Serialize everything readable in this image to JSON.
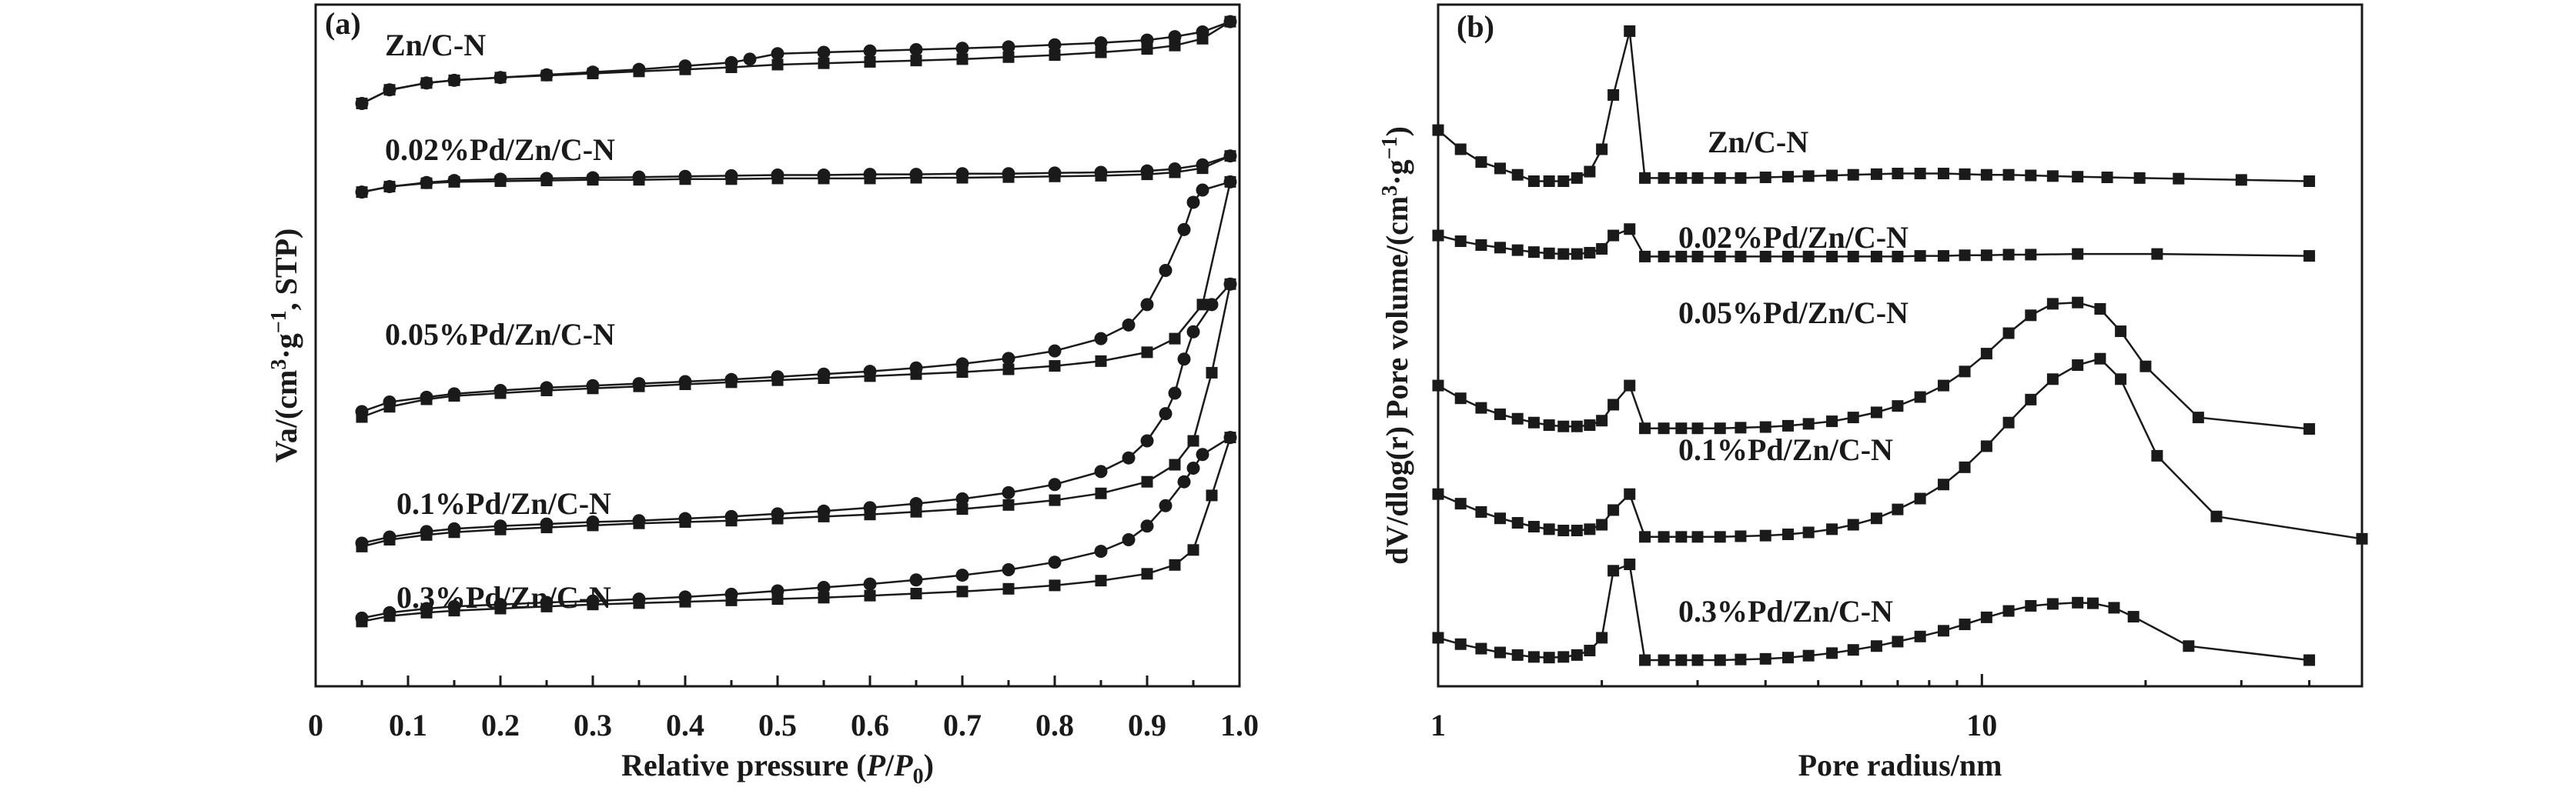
{
  "chart_data": [
    {
      "type": "line",
      "panel_label": "(a)",
      "xlabel": "Relative pressure (P/P0)",
      "xlabel_parts": {
        "prefix": "Relative pressure (",
        "p": "P",
        "slash": "/",
        "p0": "P",
        "sub": "0",
        "suffix": ")"
      },
      "ylabel": "Va/(cm³·g⁻¹, STP)",
      "ylabel_parts": {
        "a": "Va/(cm",
        "sup1": "3",
        "b": "·g",
        "sup2": "−1",
        "c": ", STP)"
      },
      "xlim": [
        0,
        1.0
      ],
      "xticks": [
        "0",
        "0.1",
        "0.2",
        "0.3",
        "0.4",
        "0.5",
        "0.6",
        "0.7",
        "0.8",
        "0.9",
        "1.0"
      ],
      "y_ticks_shown": false,
      "grid": false,
      "series": [
        {
          "name": "Zn/C-N",
          "adsorption": {
            "marker": "square",
            "x": [
              0.05,
              0.08,
              0.12,
              0.15,
              0.2,
              0.25,
              0.3,
              0.35,
              0.4,
              0.45,
              0.5,
              0.55,
              0.6,
              0.65,
              0.7,
              0.75,
              0.8,
              0.85,
              0.9,
              0.93,
              0.96,
              0.99
            ],
            "y": [
              0.855,
              0.875,
              0.885,
              0.889,
              0.893,
              0.896,
              0.899,
              0.902,
              0.905,
              0.908,
              0.912,
              0.914,
              0.916,
              0.918,
              0.92,
              0.923,
              0.926,
              0.93,
              0.935,
              0.94,
              0.95,
              0.975
            ]
          },
          "desorption": {
            "marker": "circle",
            "x": [
              0.05,
              0.08,
              0.12,
              0.15,
              0.2,
              0.25,
              0.3,
              0.35,
              0.4,
              0.45,
              0.47,
              0.5,
              0.55,
              0.6,
              0.65,
              0.7,
              0.75,
              0.8,
              0.85,
              0.9,
              0.93,
              0.96,
              0.99
            ],
            "y": [
              0.855,
              0.875,
              0.885,
              0.889,
              0.893,
              0.897,
              0.901,
              0.905,
              0.91,
              0.915,
              0.92,
              0.928,
              0.93,
              0.932,
              0.934,
              0.936,
              0.938,
              0.941,
              0.944,
              0.948,
              0.953,
              0.96,
              0.975
            ]
          }
        },
        {
          "name": "0.02%Pd/Zn/C-N",
          "adsorption": {
            "marker": "square",
            "x": [
              0.05,
              0.08,
              0.12,
              0.15,
              0.2,
              0.25,
              0.3,
              0.35,
              0.4,
              0.45,
              0.5,
              0.55,
              0.6,
              0.65,
              0.7,
              0.75,
              0.8,
              0.85,
              0.9,
              0.93,
              0.96,
              0.99
            ],
            "y": [
              0.725,
              0.733,
              0.738,
              0.74,
              0.741,
              0.742,
              0.743,
              0.743,
              0.744,
              0.744,
              0.745,
              0.745,
              0.745,
              0.746,
              0.746,
              0.747,
              0.748,
              0.749,
              0.751,
              0.754,
              0.76,
              0.778
            ]
          },
          "desorption": {
            "marker": "circle",
            "x": [
              0.05,
              0.08,
              0.12,
              0.15,
              0.2,
              0.25,
              0.3,
              0.35,
              0.4,
              0.45,
              0.5,
              0.55,
              0.6,
              0.65,
              0.7,
              0.75,
              0.8,
              0.85,
              0.9,
              0.93,
              0.96,
              0.99
            ],
            "y": [
              0.725,
              0.733,
              0.739,
              0.742,
              0.744,
              0.745,
              0.746,
              0.747,
              0.748,
              0.749,
              0.75,
              0.75,
              0.751,
              0.751,
              0.752,
              0.752,
              0.753,
              0.754,
              0.756,
              0.759,
              0.765,
              0.778
            ]
          }
        },
        {
          "name": "0.05%Pd/Zn/C-N",
          "adsorption": {
            "marker": "square",
            "x": [
              0.05,
              0.08,
              0.12,
              0.15,
              0.2,
              0.25,
              0.3,
              0.35,
              0.4,
              0.45,
              0.5,
              0.55,
              0.6,
              0.65,
              0.7,
              0.75,
              0.8,
              0.85,
              0.9,
              0.93,
              0.96,
              0.99
            ],
            "y": [
              0.395,
              0.41,
              0.421,
              0.426,
              0.43,
              0.434,
              0.437,
              0.44,
              0.443,
              0.446,
              0.449,
              0.452,
              0.455,
              0.458,
              0.461,
              0.465,
              0.47,
              0.477,
              0.49,
              0.51,
              0.56,
              0.74
            ]
          },
          "desorption": {
            "marker": "circle",
            "x": [
              0.05,
              0.08,
              0.12,
              0.15,
              0.2,
              0.25,
              0.3,
              0.35,
              0.4,
              0.45,
              0.5,
              0.55,
              0.6,
              0.65,
              0.7,
              0.75,
              0.8,
              0.85,
              0.88,
              0.9,
              0.92,
              0.94,
              0.95,
              0.96,
              0.99
            ],
            "y": [
              0.403,
              0.417,
              0.424,
              0.429,
              0.434,
              0.438,
              0.441,
              0.444,
              0.447,
              0.45,
              0.454,
              0.458,
              0.462,
              0.467,
              0.473,
              0.481,
              0.492,
              0.51,
              0.53,
              0.56,
              0.61,
              0.67,
              0.71,
              0.728,
              0.74
            ]
          }
        },
        {
          "name": "0.1%Pd/Zn/C-N",
          "adsorption": {
            "marker": "square",
            "x": [
              0.05,
              0.08,
              0.12,
              0.15,
              0.2,
              0.25,
              0.3,
              0.35,
              0.4,
              0.45,
              0.5,
              0.55,
              0.6,
              0.65,
              0.7,
              0.75,
              0.8,
              0.85,
              0.9,
              0.93,
              0.95,
              0.97,
              0.99
            ],
            "y": [
              0.205,
              0.215,
              0.222,
              0.226,
              0.23,
              0.233,
              0.236,
              0.239,
              0.241,
              0.243,
              0.246,
              0.249,
              0.252,
              0.256,
              0.26,
              0.266,
              0.273,
              0.283,
              0.3,
              0.325,
              0.36,
              0.46,
              0.59
            ]
          },
          "desorption": {
            "marker": "circle",
            "x": [
              0.05,
              0.08,
              0.12,
              0.15,
              0.2,
              0.25,
              0.3,
              0.35,
              0.4,
              0.45,
              0.5,
              0.55,
              0.6,
              0.65,
              0.7,
              0.75,
              0.8,
              0.85,
              0.88,
              0.9,
              0.92,
              0.93,
              0.94,
              0.95,
              0.97,
              0.99
            ],
            "y": [
              0.21,
              0.219,
              0.227,
              0.231,
              0.235,
              0.238,
              0.241,
              0.243,
              0.246,
              0.249,
              0.253,
              0.257,
              0.262,
              0.268,
              0.275,
              0.284,
              0.296,
              0.315,
              0.335,
              0.36,
              0.4,
              0.43,
              0.48,
              0.52,
              0.56,
              0.59
            ]
          }
        },
        {
          "name": "0.3%Pd/Zn/C-N",
          "adsorption": {
            "marker": "square",
            "x": [
              0.05,
              0.08,
              0.12,
              0.15,
              0.2,
              0.25,
              0.3,
              0.35,
              0.4,
              0.45,
              0.5,
              0.55,
              0.6,
              0.65,
              0.7,
              0.75,
              0.8,
              0.85,
              0.9,
              0.93,
              0.95,
              0.97,
              0.99
            ],
            "y": [
              0.095,
              0.103,
              0.108,
              0.111,
              0.114,
              0.117,
              0.12,
              0.122,
              0.124,
              0.126,
              0.128,
              0.13,
              0.133,
              0.136,
              0.139,
              0.143,
              0.148,
              0.155,
              0.165,
              0.178,
              0.2,
              0.28,
              0.365
            ]
          },
          "desorption": {
            "marker": "circle",
            "x": [
              0.05,
              0.08,
              0.12,
              0.15,
              0.2,
              0.25,
              0.3,
              0.35,
              0.4,
              0.45,
              0.5,
              0.55,
              0.6,
              0.65,
              0.7,
              0.75,
              0.8,
              0.85,
              0.88,
              0.9,
              0.92,
              0.94,
              0.95,
              0.96,
              0.99
            ],
            "y": [
              0.1,
              0.108,
              0.114,
              0.117,
              0.12,
              0.123,
              0.125,
              0.128,
              0.131,
              0.135,
              0.14,
              0.145,
              0.15,
              0.156,
              0.163,
              0.171,
              0.182,
              0.198,
              0.215,
              0.235,
              0.265,
              0.3,
              0.32,
              0.34,
              0.365
            ]
          }
        }
      ]
    },
    {
      "type": "line",
      "panel_label": "(b)",
      "xlabel": "Pore radius/nm",
      "ylabel": "dV/dlog(r) Pore volume/(cm³·g⁻¹)",
      "ylabel_parts": {
        "a": "dV/dlog(r) Pore volume/(cm",
        "sup1": "3",
        "b": "·g",
        "sup2": "−1",
        "c": ")"
      },
      "x_scale": "log",
      "xlim": [
        1,
        50
      ],
      "xticks": [
        "1",
        "10"
      ],
      "y_ticks_shown": false,
      "grid": false,
      "series": [
        {
          "name": "Zn/C-N",
          "marker": "square",
          "x": [
            1.0,
            1.1,
            1.2,
            1.3,
            1.4,
            1.5,
            1.6,
            1.7,
            1.8,
            1.9,
            2.0,
            2.1,
            2.25,
            2.4,
            2.6,
            2.8,
            3.0,
            3.3,
            3.6,
            4.0,
            4.4,
            4.8,
            5.3,
            5.8,
            6.4,
            7.0,
            7.7,
            8.5,
            9.3,
            10.2,
            11.2,
            12.3,
            13.5,
            15.0,
            17.0,
            19.5,
            23.0,
            30.0,
            40.0
          ],
          "y": [
            0.83,
            0.8,
            0.78,
            0.77,
            0.76,
            0.75,
            0.75,
            0.75,
            0.755,
            0.765,
            0.8,
            0.885,
            0.985,
            0.755,
            0.755,
            0.755,
            0.755,
            0.755,
            0.755,
            0.756,
            0.757,
            0.758,
            0.759,
            0.76,
            0.761,
            0.762,
            0.762,
            0.762,
            0.761,
            0.76,
            0.76,
            0.759,
            0.758,
            0.757,
            0.756,
            0.755,
            0.754,
            0.752,
            0.75
          ]
        },
        {
          "name": "0.02%Pd/Zn/C-N",
          "marker": "square",
          "x": [
            1.0,
            1.1,
            1.2,
            1.3,
            1.4,
            1.5,
            1.6,
            1.7,
            1.8,
            1.9,
            2.0,
            2.1,
            2.25,
            2.4,
            2.6,
            2.8,
            3.0,
            3.3,
            3.6,
            4.0,
            4.4,
            4.8,
            5.3,
            5.8,
            6.4,
            7.0,
            7.7,
            8.5,
            9.3,
            10.2,
            11.2,
            12.3,
            15.0,
            21.0,
            40.0
          ],
          "y": [
            0.665,
            0.656,
            0.65,
            0.646,
            0.642,
            0.639,
            0.637,
            0.636,
            0.636,
            0.638,
            0.644,
            0.665,
            0.675,
            0.632,
            0.632,
            0.632,
            0.632,
            0.632,
            0.632,
            0.632,
            0.632,
            0.632,
            0.632,
            0.632,
            0.632,
            0.632,
            0.633,
            0.633,
            0.634,
            0.634,
            0.635,
            0.635,
            0.636,
            0.636,
            0.633
          ]
        },
        {
          "name": "0.05%Pd/Zn/C-N",
          "marker": "square",
          "x": [
            1.0,
            1.1,
            1.2,
            1.3,
            1.4,
            1.5,
            1.6,
            1.7,
            1.8,
            1.9,
            2.0,
            2.1,
            2.25,
            2.4,
            2.6,
            2.8,
            3.0,
            3.3,
            3.6,
            4.0,
            4.4,
            4.8,
            5.3,
            5.8,
            6.4,
            7.0,
            7.7,
            8.5,
            9.3,
            10.2,
            11.2,
            12.3,
            13.5,
            15.0,
            16.5,
            18.0,
            20.0,
            25.0,
            40.0
          ],
          "y": [
            0.43,
            0.41,
            0.395,
            0.385,
            0.378,
            0.372,
            0.368,
            0.366,
            0.366,
            0.368,
            0.375,
            0.4,
            0.43,
            0.363,
            0.363,
            0.363,
            0.363,
            0.363,
            0.364,
            0.365,
            0.367,
            0.37,
            0.374,
            0.38,
            0.388,
            0.398,
            0.412,
            0.43,
            0.452,
            0.48,
            0.512,
            0.54,
            0.558,
            0.56,
            0.55,
            0.515,
            0.46,
            0.38,
            0.362
          ]
        },
        {
          "name": "0.1%Pd/Zn/C-N",
          "marker": "square",
          "x": [
            1.0,
            1.1,
            1.2,
            1.3,
            1.4,
            1.5,
            1.6,
            1.7,
            1.8,
            1.9,
            2.0,
            2.1,
            2.25,
            2.4,
            2.6,
            2.8,
            3.0,
            3.3,
            3.6,
            4.0,
            4.4,
            4.8,
            5.3,
            5.8,
            6.4,
            7.0,
            7.7,
            8.5,
            9.3,
            10.2,
            11.2,
            12.3,
            13.5,
            15.0,
            16.5,
            18.0,
            21.0,
            27.0,
            50.0
          ],
          "y": [
            0.26,
            0.245,
            0.232,
            0.222,
            0.215,
            0.209,
            0.205,
            0.203,
            0.203,
            0.205,
            0.212,
            0.235,
            0.26,
            0.193,
            0.193,
            0.193,
            0.193,
            0.193,
            0.194,
            0.195,
            0.197,
            0.2,
            0.205,
            0.212,
            0.222,
            0.236,
            0.253,
            0.275,
            0.302,
            0.335,
            0.372,
            0.408,
            0.44,
            0.462,
            0.472,
            0.44,
            0.32,
            0.225,
            0.19
          ]
        },
        {
          "name": "0.3%Pd/Zn/C-N",
          "marker": "square",
          "x": [
            1.0,
            1.1,
            1.2,
            1.3,
            1.4,
            1.5,
            1.6,
            1.7,
            1.8,
            1.9,
            2.0,
            2.1,
            2.25,
            2.4,
            2.6,
            2.8,
            3.0,
            3.3,
            3.6,
            4.0,
            4.4,
            4.8,
            5.3,
            5.8,
            6.4,
            7.0,
            7.7,
            8.5,
            9.3,
            10.2,
            11.2,
            12.3,
            13.5,
            15.0,
            16.0,
            17.5,
            19.0,
            24.0,
            40.0
          ],
          "y": [
            0.035,
            0.025,
            0.018,
            0.012,
            0.008,
            0.005,
            0.004,
            0.005,
            0.008,
            0.015,
            0.035,
            0.14,
            0.15,
            0.0,
            0.0,
            0.0,
            0.0,
            0.0,
            0.001,
            0.002,
            0.004,
            0.007,
            0.011,
            0.016,
            0.022,
            0.029,
            0.037,
            0.046,
            0.056,
            0.067,
            0.077,
            0.085,
            0.088,
            0.09,
            0.089,
            0.082,
            0.068,
            0.022,
            0.0
          ]
        }
      ]
    }
  ]
}
